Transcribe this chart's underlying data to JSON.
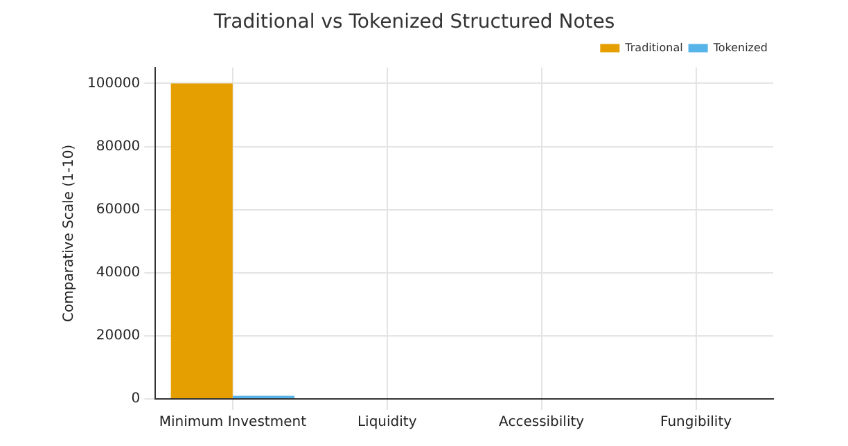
{
  "chart_data": {
    "type": "bar",
    "title": "Traditional vs Tokenized Structured Notes",
    "ylabel": "Comparative Scale (1-10)",
    "categories": [
      "Minimum Investment",
      "Liquidity",
      "Accessibility",
      "Fungibility"
    ],
    "series": [
      {
        "name": "Traditional",
        "color": "#e69f00",
        "values": [
          100000,
          0,
          0,
          0
        ]
      },
      {
        "name": "Tokenized",
        "color": "#56b4e9",
        "values": [
          1000,
          0,
          0,
          0
        ]
      }
    ],
    "ylim": [
      0,
      105000
    ],
    "yticks": [
      0,
      20000,
      40000,
      60000,
      80000,
      100000
    ],
    "grid": true,
    "legend": "top right"
  }
}
